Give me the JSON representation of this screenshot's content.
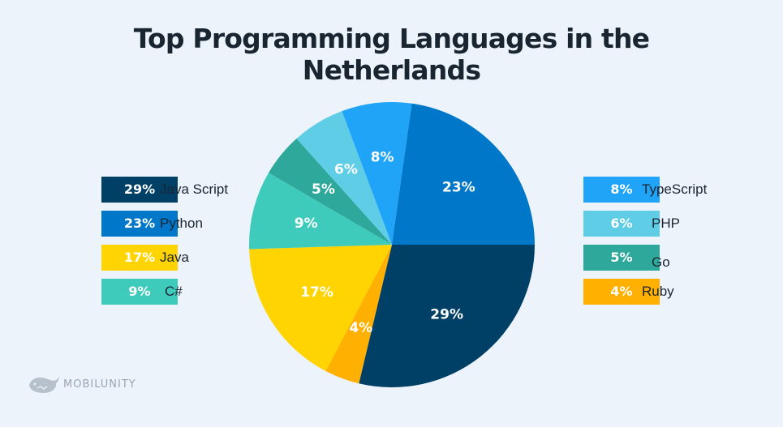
{
  "chart_data": {
    "type": "pie",
    "title_lines": [
      "Top Programming Languages in the",
      "Netherlands"
    ],
    "slices": [
      {
        "label": "Java Script",
        "value": 29,
        "display": "29%",
        "color": "#003f66"
      },
      {
        "label": "Python",
        "value": 23,
        "display": "23%",
        "color": "#0077c8"
      },
      {
        "label": "Java",
        "value": 17,
        "display": "17%",
        "color": "#ffd400"
      },
      {
        "label": "C#",
        "value": 9,
        "display": "9%",
        "color": "#3fcbbb"
      },
      {
        "label": "TypeScript",
        "value": 8,
        "display": "8%",
        "color": "#20a4f7"
      },
      {
        "label": "PHP",
        "value": 6,
        "display": "6%",
        "color": "#5fcde6"
      },
      {
        "label": "Go",
        "value": 5,
        "display": "5%",
        "color": "#2da89b"
      },
      {
        "label": "Ruby",
        "value": 4,
        "display": "4%",
        "color": "#ffb000"
      }
    ],
    "legend_left": [
      "Java Script",
      "Python",
      "Java",
      "C#"
    ],
    "legend_right": [
      "TypeScript",
      "PHP",
      "Go",
      "Ruby"
    ]
  },
  "brand": {
    "name": "MOBILUNITY"
  }
}
